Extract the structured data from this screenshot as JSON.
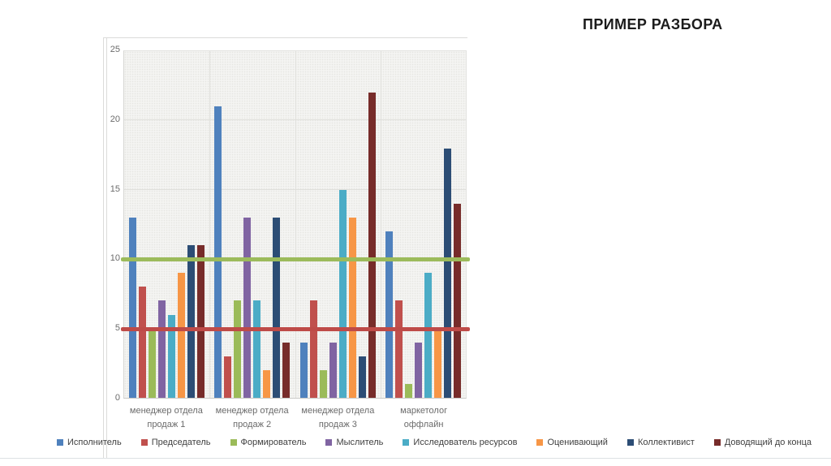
{
  "slide": {
    "title": "ПРИМЕР РАЗБОРА"
  },
  "chart_data": {
    "type": "bar",
    "title": "",
    "xlabel": "",
    "ylabel": "",
    "ylim": [
      0,
      25
    ],
    "yticks": [
      0,
      5,
      10,
      15,
      20,
      25
    ],
    "grid": true,
    "legend_position": "bottom",
    "categories": [
      "менеджер отдела продаж 1",
      "менеджер отдела продаж 2",
      "менеджер отдела продаж 3",
      "маркетолог оффлайн"
    ],
    "series": [
      {
        "name": "Исполнитель",
        "color": "#4F81BD",
        "values": [
          13,
          21,
          4,
          12
        ]
      },
      {
        "name": "Председатель",
        "color": "#C0504D",
        "values": [
          8,
          3,
          7,
          7
        ]
      },
      {
        "name": "Формирователь",
        "color": "#9BBB59",
        "values": [
          5,
          7,
          2,
          1
        ]
      },
      {
        "name": "Мыслитель",
        "color": "#8064A2",
        "values": [
          7,
          13,
          4,
          4
        ]
      },
      {
        "name": "Исследователь ресурсов",
        "color": "#4BACC6",
        "values": [
          6,
          7,
          15,
          9
        ]
      },
      {
        "name": "Оценивающий",
        "color": "#F79646",
        "values": [
          9,
          2,
          13,
          5
        ]
      },
      {
        "name": "Коллективист",
        "color": "#2C4D75",
        "values": [
          11,
          13,
          3,
          18
        ]
      },
      {
        "name": "Доводящий до конца",
        "color": "#772C2A",
        "values": [
          11,
          4,
          22,
          14
        ]
      }
    ],
    "reference_lines": [
      {
        "value": 10,
        "color": "#9CBB5B"
      },
      {
        "value": 5,
        "color": "#BE4B48"
      }
    ]
  }
}
